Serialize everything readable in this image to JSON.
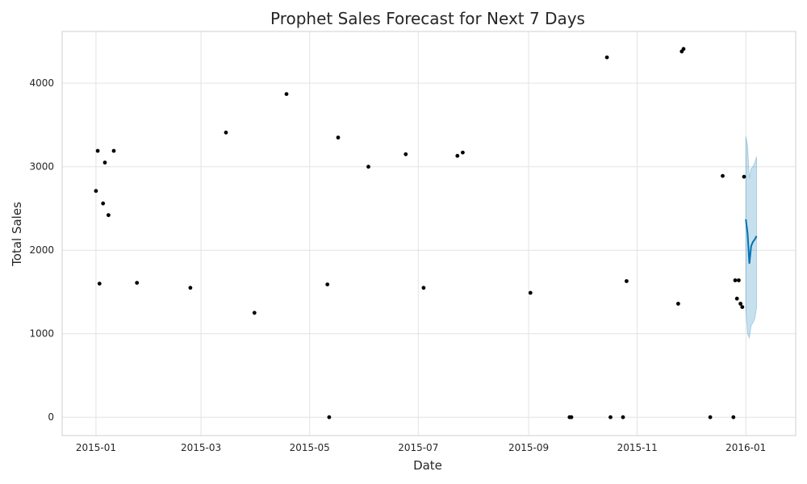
{
  "chart_data": {
    "type": "scatter",
    "title": "Prophet Sales Forecast for Next 7 Days",
    "xlabel": "Date",
    "ylabel": "Total Sales",
    "xlim": [
      "2014-12-13",
      "2016-01-29"
    ],
    "ylim": [
      -220,
      4620
    ],
    "x_ticks": [
      "2015-01-01",
      "2015-03-01",
      "2015-05-01",
      "2015-07-01",
      "2015-09-01",
      "2015-11-01",
      "2016-01-01"
    ],
    "x_tick_labels": [
      "2015-01",
      "2015-03",
      "2015-05",
      "2015-07",
      "2015-09",
      "2015-11",
      "2016-01"
    ],
    "y_ticks": [
      0,
      1000,
      2000,
      3000,
      4000
    ],
    "y_tick_labels": [
      "0",
      "1000",
      "2000",
      "3000",
      "4000"
    ],
    "grid": true,
    "colors": {
      "observed": "#000000",
      "forecast": "#0072B2",
      "interval": "#0072B2",
      "grid": "#e3e3e3",
      "frame": "#cfcfcf"
    },
    "observed_sample": [
      {
        "x": "2015-01-01",
        "y": 2710
      },
      {
        "x": "2015-01-02",
        "y": 3190
      },
      {
        "x": "2015-01-03",
        "y": 1600
      },
      {
        "x": "2015-01-05",
        "y": 2560
      },
      {
        "x": "2015-01-06",
        "y": 3050
      },
      {
        "x": "2015-01-08",
        "y": 2420
      },
      {
        "x": "2015-01-11",
        "y": 3190
      },
      {
        "x": "2015-01-24",
        "y": 1610
      },
      {
        "x": "2015-02-23",
        "y": 1550
      },
      {
        "x": "2015-03-15",
        "y": 3410
      },
      {
        "x": "2015-03-31",
        "y": 1250
      },
      {
        "x": "2015-04-18",
        "y": 3870
      },
      {
        "x": "2015-05-11",
        "y": 1590
      },
      {
        "x": "2015-05-12",
        "y": 0
      },
      {
        "x": "2015-05-17",
        "y": 3350
      },
      {
        "x": "2015-06-03",
        "y": 3000
      },
      {
        "x": "2015-06-24",
        "y": 3150
      },
      {
        "x": "2015-07-04",
        "y": 1550
      },
      {
        "x": "2015-07-23",
        "y": 3130
      },
      {
        "x": "2015-07-26",
        "y": 3170
      },
      {
        "x": "2015-09-02",
        "y": 1490
      },
      {
        "x": "2015-09-24",
        "y": 0
      },
      {
        "x": "2015-09-25",
        "y": 0
      },
      {
        "x": "2015-10-15",
        "y": 4310
      },
      {
        "x": "2015-10-17",
        "y": 0
      },
      {
        "x": "2015-10-24",
        "y": 0
      },
      {
        "x": "2015-10-26",
        "y": 1630
      },
      {
        "x": "2015-11-24",
        "y": 1360
      },
      {
        "x": "2015-11-26",
        "y": 4380
      },
      {
        "x": "2015-11-27",
        "y": 4410
      },
      {
        "x": "2015-12-12",
        "y": 0
      },
      {
        "x": "2015-12-19",
        "y": 2890
      },
      {
        "x": "2015-12-25",
        "y": 0
      },
      {
        "x": "2015-12-26",
        "y": 1640
      },
      {
        "x": "2015-12-27",
        "y": 1420
      },
      {
        "x": "2015-12-28",
        "y": 1640
      },
      {
        "x": "2015-12-29",
        "y": 1360
      },
      {
        "x": "2015-12-30",
        "y": 1320
      },
      {
        "x": "2015-12-31",
        "y": 2880
      }
    ],
    "forecast": {
      "x": [
        "2016-01-01",
        "2016-01-02",
        "2016-01-03",
        "2016-01-04",
        "2016-01-05",
        "2016-01-06",
        "2016-01-07"
      ],
      "yhat": [
        2370,
        2200,
        1840,
        2050,
        2100,
        2130,
        2170
      ],
      "yhat_lower": [
        1290,
        1000,
        950,
        1100,
        1130,
        1180,
        1310
      ],
      "yhat_upper": [
        3360,
        3250,
        2860,
        2980,
        3000,
        3050,
        3120
      ]
    }
  }
}
